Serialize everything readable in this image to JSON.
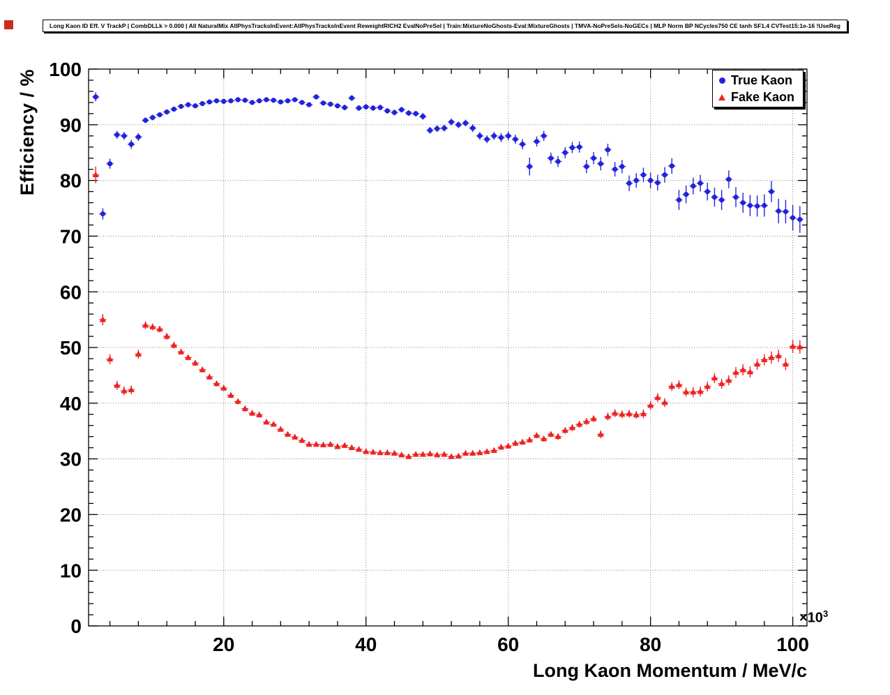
{
  "page": {
    "title": "Long Kaon ID Eff. V TrackP | CombDLLk > 0.000 | All NaturalMix AllPhysTracksInEvent:AllPhysTracksInEvent ReweightRICH2 EvalNoPreSel | Train:MixtureNoGhosts-Eval:MixtureGhosts | TMVA-NoPreSels-NoGECs | MLP Norm BP NCycles750 CE tanh SF1.4 CVTest15:1e-16 !UseReg"
  },
  "axes": {
    "y_title": "Efficiency / %",
    "x_title": "Long Kaon Momentum / MeV/c",
    "x_exponent_base": "×10",
    "x_exponent_power": "3"
  },
  "legend": {
    "entries": [
      {
        "label": "True Kaon",
        "marker": "circle",
        "color": "#2222dd"
      },
      {
        "label": "Fake Kaon",
        "marker": "triangle",
        "color": "#ee2222"
      }
    ]
  },
  "chart_data": {
    "type": "scatter",
    "title": "Long Kaon ID Eff. V TrackP | CombDLLk > 0.000 | All NaturalMix AllPhysTracksInEvent:AllPhysTracksInEvent ReweightRICH2 EvalNoPreSel | Train:MixtureNoGhosts-Eval:MixtureGhosts | TMVA-NoPreSels-NoGECs | MLP Norm BP NCycles750 CE tanh SF1.4 CVTest15:1e-16 !UseReg",
    "xlabel": "Long Kaon Momentum / MeV/c",
    "ylabel": "Efficiency / %",
    "x_units": "values in units of 10^3 MeV/c",
    "xlim": [
      1,
      102
    ],
    "ylim": [
      0,
      100
    ],
    "grid": true,
    "legend_position": "top-right",
    "x_major_ticks": [
      20,
      40,
      60,
      80,
      100
    ],
    "y_major_ticks": [
      0,
      10,
      20,
      30,
      40,
      50,
      60,
      70,
      80,
      90,
      100
    ],
    "x": [
      2,
      3,
      4,
      5,
      6,
      7,
      8,
      9,
      10,
      11,
      12,
      13,
      14,
      15,
      16,
      17,
      18,
      19,
      20,
      21,
      22,
      23,
      24,
      25,
      26,
      27,
      28,
      29,
      30,
      31,
      32,
      33,
      34,
      35,
      36,
      37,
      38,
      39,
      40,
      41,
      42,
      43,
      44,
      45,
      46,
      47,
      48,
      49,
      50,
      51,
      52,
      53,
      54,
      55,
      56,
      57,
      58,
      59,
      60,
      61,
      62,
      63,
      64,
      65,
      66,
      67,
      68,
      69,
      70,
      71,
      72,
      73,
      74,
      75,
      76,
      77,
      78,
      79,
      80,
      81,
      82,
      83,
      84,
      85,
      86,
      87,
      88,
      89,
      90,
      91,
      92,
      93,
      94,
      95,
      96,
      97,
      98,
      99,
      100,
      101
    ],
    "series": [
      {
        "name": "True Kaon",
        "color": "#2222dd",
        "marker": "circle",
        "values": [
          95.0,
          74.0,
          83.0,
          88.2,
          88.0,
          86.5,
          87.8,
          90.8,
          91.3,
          91.8,
          92.3,
          92.8,
          93.3,
          93.6,
          93.4,
          93.8,
          94.1,
          94.3,
          94.2,
          94.3,
          94.5,
          94.4,
          94.0,
          94.3,
          94.5,
          94.4,
          94.1,
          94.3,
          94.5,
          94.0,
          93.6,
          95.0,
          93.9,
          93.7,
          93.4,
          93.1,
          94.8,
          93.0,
          93.2,
          93.0,
          93.1,
          92.5,
          92.2,
          92.7,
          92.1,
          92.0,
          91.5,
          89.0,
          89.3,
          89.4,
          90.5,
          90.0,
          90.3,
          89.4,
          88.0,
          87.4,
          88.0,
          87.7,
          88.0,
          87.4,
          86.5,
          82.5,
          87.0,
          88.0,
          84.0,
          83.4,
          85.0,
          85.9,
          86.0,
          82.5,
          84.0,
          83.0,
          85.5,
          82.0,
          82.5,
          79.5,
          80.0,
          81.0,
          80.0,
          79.6,
          81.0,
          82.6,
          76.5,
          77.5,
          79.0,
          79.5,
          78.0,
          77.0,
          76.5,
          80.2,
          77.0,
          76.0,
          75.5,
          75.4,
          75.5,
          78.0,
          74.5,
          74.4,
          73.3,
          73.0
        ],
        "yerr": [
          0.8,
          1.0,
          0.9,
          0.7,
          0.7,
          0.8,
          0.7,
          0.5,
          0.5,
          0.4,
          0.4,
          0.4,
          0.4,
          0.4,
          0.4,
          0.4,
          0.4,
          0.4,
          0.4,
          0.4,
          0.4,
          0.4,
          0.4,
          0.4,
          0.4,
          0.4,
          0.4,
          0.4,
          0.4,
          0.4,
          0.4,
          0.4,
          0.4,
          0.4,
          0.4,
          0.5,
          0.5,
          0.5,
          0.5,
          0.5,
          0.5,
          0.5,
          0.5,
          0.5,
          0.5,
          0.5,
          0.6,
          0.6,
          0.6,
          0.6,
          0.6,
          0.6,
          0.6,
          0.7,
          0.7,
          0.7,
          0.7,
          0.8,
          0.8,
          0.8,
          0.9,
          1.6,
          0.9,
          0.9,
          1.0,
          1.0,
          1.0,
          1.0,
          1.0,
          1.2,
          1.1,
          1.2,
          1.1,
          1.3,
          1.2,
          1.4,
          1.3,
          1.3,
          1.4,
          1.4,
          1.4,
          1.4,
          1.8,
          1.6,
          1.5,
          1.5,
          1.6,
          1.7,
          1.8,
          1.6,
          1.8,
          1.8,
          1.9,
          1.9,
          2.0,
          1.9,
          2.2,
          2.1,
          2.3,
          2.4
        ]
      },
      {
        "name": "Fake Kaon",
        "color": "#ee2222",
        "marker": "triangle",
        "values": [
          81.0,
          55.0,
          47.9,
          43.2,
          42.2,
          42.4,
          48.8,
          54.0,
          53.7,
          53.3,
          52.0,
          50.4,
          49.2,
          48.2,
          47.2,
          46.0,
          44.7,
          43.5,
          42.7,
          41.4,
          40.3,
          39.0,
          38.2,
          37.9,
          36.6,
          36.2,
          35.3,
          34.4,
          33.9,
          33.3,
          32.6,
          32.6,
          32.5,
          32.6,
          32.2,
          32.4,
          32.0,
          31.7,
          31.3,
          31.2,
          31.1,
          31.1,
          31.0,
          30.7,
          30.4,
          30.8,
          30.8,
          30.9,
          30.7,
          30.8,
          30.4,
          30.5,
          31.0,
          31.0,
          31.1,
          31.3,
          31.5,
          32.1,
          32.3,
          32.8,
          33.0,
          33.4,
          34.2,
          33.6,
          34.4,
          34.0,
          35.1,
          35.6,
          36.2,
          36.7,
          37.2,
          34.4,
          37.6,
          38.2,
          38.0,
          38.1,
          37.9,
          38.1,
          39.6,
          41.0,
          40.1,
          43.0,
          43.3,
          42.0,
          42.0,
          42.1,
          43.0,
          44.5,
          43.5,
          44.1,
          45.5,
          46.0,
          45.6,
          47.0,
          47.8,
          48.2,
          48.5,
          47.0,
          50.2,
          50.1
        ],
        "yerr": [
          1.5,
          1.0,
          0.9,
          0.8,
          0.8,
          0.8,
          0.8,
          0.7,
          0.6,
          0.6,
          0.6,
          0.6,
          0.5,
          0.5,
          0.5,
          0.5,
          0.5,
          0.5,
          0.5,
          0.5,
          0.5,
          0.5,
          0.5,
          0.5,
          0.4,
          0.4,
          0.4,
          0.4,
          0.4,
          0.4,
          0.4,
          0.4,
          0.4,
          0.4,
          0.4,
          0.4,
          0.4,
          0.4,
          0.4,
          0.4,
          0.4,
          0.4,
          0.4,
          0.4,
          0.4,
          0.4,
          0.4,
          0.4,
          0.4,
          0.4,
          0.4,
          0.4,
          0.4,
          0.4,
          0.4,
          0.4,
          0.4,
          0.5,
          0.5,
          0.5,
          0.5,
          0.5,
          0.5,
          0.5,
          0.5,
          0.6,
          0.6,
          0.6,
          0.6,
          0.6,
          0.6,
          0.7,
          0.7,
          0.7,
          0.7,
          0.7,
          0.7,
          0.8,
          0.8,
          0.8,
          0.8,
          0.8,
          0.8,
          0.8,
          0.9,
          0.9,
          0.9,
          0.9,
          0.9,
          0.9,
          1.0,
          1.0,
          1.0,
          1.0,
          1.0,
          1.1,
          1.1,
          1.1,
          1.2,
          1.2
        ]
      }
    ]
  }
}
